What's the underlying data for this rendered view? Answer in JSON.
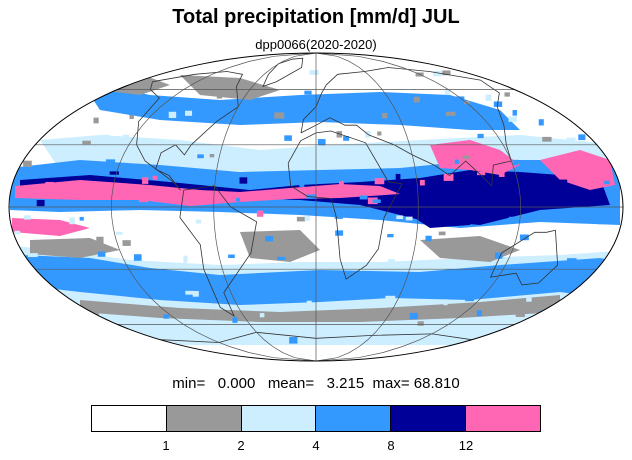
{
  "title": "Total precipitation [mm/d] JUL",
  "subtitle": "dpp0066(2020-2020)",
  "stats": {
    "min_label": "min=",
    "min_value": "0.000",
    "mean_label": "mean=",
    "mean_value": "3.215",
    "max_label": "max=",
    "max_value": "68.810"
  },
  "colorbar": {
    "colors": [
      "#ffffff",
      "#999999",
      "#cceeff",
      "#3399ff",
      "#000099",
      "#ff66b3"
    ],
    "tick_labels": [
      "1",
      "2",
      "4",
      "8",
      "12"
    ]
  },
  "map": {
    "projection": "mollweide",
    "colors": {
      "background": "#ffffff",
      "low": "#999999",
      "light": "#cceeff",
      "mid": "#3399ff",
      "high": "#000099",
      "extreme": "#ff66b3",
      "grid": "#555555",
      "coast": "#333333"
    }
  }
}
